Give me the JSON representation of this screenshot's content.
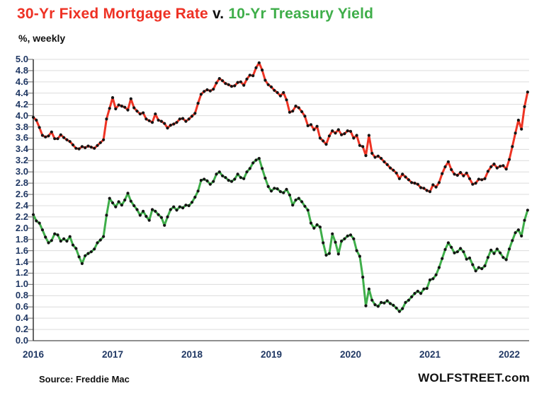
{
  "header": {
    "title_red": "30-Yr Fixed Mortgage Rate",
    "title_sep": " v. ",
    "title_green": "10-Yr Treasury Yield",
    "subtitle": "%, weekly"
  },
  "footer": {
    "source": "Source: Freddie Mac",
    "brand": "WOLFSTREET.com"
  },
  "colors": {
    "mortgage_red": "#ee3424",
    "treasury_green": "#3fae4a",
    "marker_black": "#151515",
    "grid": "#dcdcdc",
    "baseline": "#8f8f8f",
    "tick": "#7f7f7f",
    "axis": "#3f3f3f",
    "axis_label": "#203864"
  },
  "axes": {
    "y_ticks": [
      "5.0",
      "4.8",
      "4.6",
      "4.4",
      "4.2",
      "4.0",
      "3.8",
      "3.6",
      "3.4",
      "3.2",
      "3.0",
      "2.8",
      "2.6",
      "2.4",
      "2.2",
      "2.0",
      "1.8",
      "1.6",
      "1.4",
      "1.2",
      "1.0",
      "0.8",
      "0.6",
      "0.4",
      "0.2",
      "0.0"
    ],
    "x_ticks": [
      "2016",
      "2017",
      "2018",
      "2019",
      "2020",
      "2021",
      "2022"
    ]
  },
  "chart_data": {
    "type": "line",
    "title": "30-Yr Fixed Mortgage Rate v. 10-Yr Treasury Yield",
    "subtitle": "%, weekly",
    "grid": "horizontal",
    "legend_position": "in-title",
    "ylim": [
      0.0,
      5.0
    ],
    "y_tick_step": 0.2,
    "x_range": [
      2016.0,
      2022.25
    ],
    "x_start": 2016.0,
    "x_step_years": 0.038462,
    "x_unit": "year (biweekly samples of weekly data)",
    "series": [
      {
        "name": "30-Yr Fixed Mortgage Rate",
        "color": "#ee3424",
        "values": [
          3.97,
          3.92,
          3.79,
          3.65,
          3.62,
          3.64,
          3.71,
          3.59,
          3.59,
          3.66,
          3.61,
          3.57,
          3.54,
          3.48,
          3.42,
          3.41,
          3.45,
          3.43,
          3.46,
          3.44,
          3.42,
          3.47,
          3.52,
          3.57,
          3.94,
          4.13,
          4.32,
          4.12,
          4.19,
          4.17,
          4.15,
          4.1,
          4.3,
          4.14,
          4.08,
          4.03,
          4.05,
          3.94,
          3.91,
          3.88,
          4.03,
          3.92,
          3.9,
          3.86,
          3.78,
          3.83,
          3.85,
          3.88,
          3.94,
          3.95,
          3.9,
          3.94,
          3.99,
          4.04,
          4.22,
          4.38,
          4.43,
          4.46,
          4.44,
          4.47,
          4.58,
          4.66,
          4.62,
          4.57,
          4.55,
          4.52,
          4.53,
          4.59,
          4.6,
          4.54,
          4.65,
          4.72,
          4.71,
          4.85,
          4.94,
          4.81,
          4.63,
          4.55,
          4.51,
          4.45,
          4.41,
          4.35,
          4.41,
          4.28,
          4.06,
          4.08,
          4.17,
          4.14,
          4.07,
          3.99,
          3.82,
          3.84,
          3.75,
          3.81,
          3.6,
          3.55,
          3.49,
          3.64,
          3.73,
          3.69,
          3.75,
          3.66,
          3.68,
          3.73,
          3.72,
          3.6,
          3.65,
          3.47,
          3.45,
          3.29,
          3.65,
          3.33,
          3.26,
          3.28,
          3.24,
          3.18,
          3.13,
          3.07,
          3.03,
          2.98,
          2.88,
          2.96,
          2.91,
          2.86,
          2.81,
          2.8,
          2.78,
          2.72,
          2.71,
          2.67,
          2.65,
          2.77,
          2.73,
          2.81,
          2.97,
          3.09,
          3.18,
          3.04,
          2.96,
          2.94,
          2.99,
          2.93,
          2.98,
          2.88,
          2.78,
          2.8,
          2.87,
          2.86,
          2.88,
          3.01,
          3.09,
          3.14,
          3.07,
          3.1,
          3.11,
          3.05,
          3.22,
          3.45,
          3.69,
          3.92,
          3.76,
          4.16,
          4.42
        ]
      },
      {
        "name": "10-Yr Treasury Yield",
        "color": "#3fae4a",
        "values": [
          2.24,
          2.13,
          2.09,
          1.97,
          1.84,
          1.74,
          1.78,
          1.9,
          1.88,
          1.77,
          1.81,
          1.77,
          1.85,
          1.7,
          1.64,
          1.49,
          1.37,
          1.51,
          1.55,
          1.58,
          1.63,
          1.74,
          1.79,
          1.85,
          2.23,
          2.53,
          2.45,
          2.38,
          2.47,
          2.41,
          2.5,
          2.62,
          2.48,
          2.4,
          2.33,
          2.23,
          2.3,
          2.21,
          2.14,
          2.33,
          2.3,
          2.24,
          2.19,
          2.05,
          2.2,
          2.33,
          2.38,
          2.32,
          2.38,
          2.36,
          2.41,
          2.4,
          2.46,
          2.55,
          2.66,
          2.85,
          2.87,
          2.84,
          2.78,
          2.83,
          2.96,
          3.0,
          2.93,
          2.9,
          2.85,
          2.83,
          2.87,
          2.96,
          2.9,
          2.88,
          3.0,
          3.06,
          3.16,
          3.21,
          3.24,
          3.06,
          2.89,
          2.74,
          2.66,
          2.71,
          2.7,
          2.65,
          2.63,
          2.69,
          2.59,
          2.41,
          2.5,
          2.53,
          2.47,
          2.39,
          2.32,
          2.09,
          2.0,
          2.06,
          2.02,
          1.74,
          1.52,
          1.55,
          1.9,
          1.75,
          1.54,
          1.77,
          1.81,
          1.86,
          1.88,
          1.81,
          1.6,
          1.5,
          1.13,
          0.62,
          0.92,
          0.72,
          0.64,
          0.61,
          0.68,
          0.67,
          0.71,
          0.66,
          0.63,
          0.58,
          0.52,
          0.57,
          0.68,
          0.72,
          0.78,
          0.84,
          0.88,
          0.84,
          0.92,
          0.93,
          1.08,
          1.1,
          1.17,
          1.3,
          1.46,
          1.62,
          1.74,
          1.66,
          1.56,
          1.58,
          1.64,
          1.58,
          1.45,
          1.47,
          1.35,
          1.24,
          1.3,
          1.28,
          1.33,
          1.48,
          1.61,
          1.55,
          1.63,
          1.56,
          1.48,
          1.44,
          1.63,
          1.78,
          1.92,
          1.97,
          1.86,
          2.14,
          2.32
        ]
      }
    ]
  }
}
